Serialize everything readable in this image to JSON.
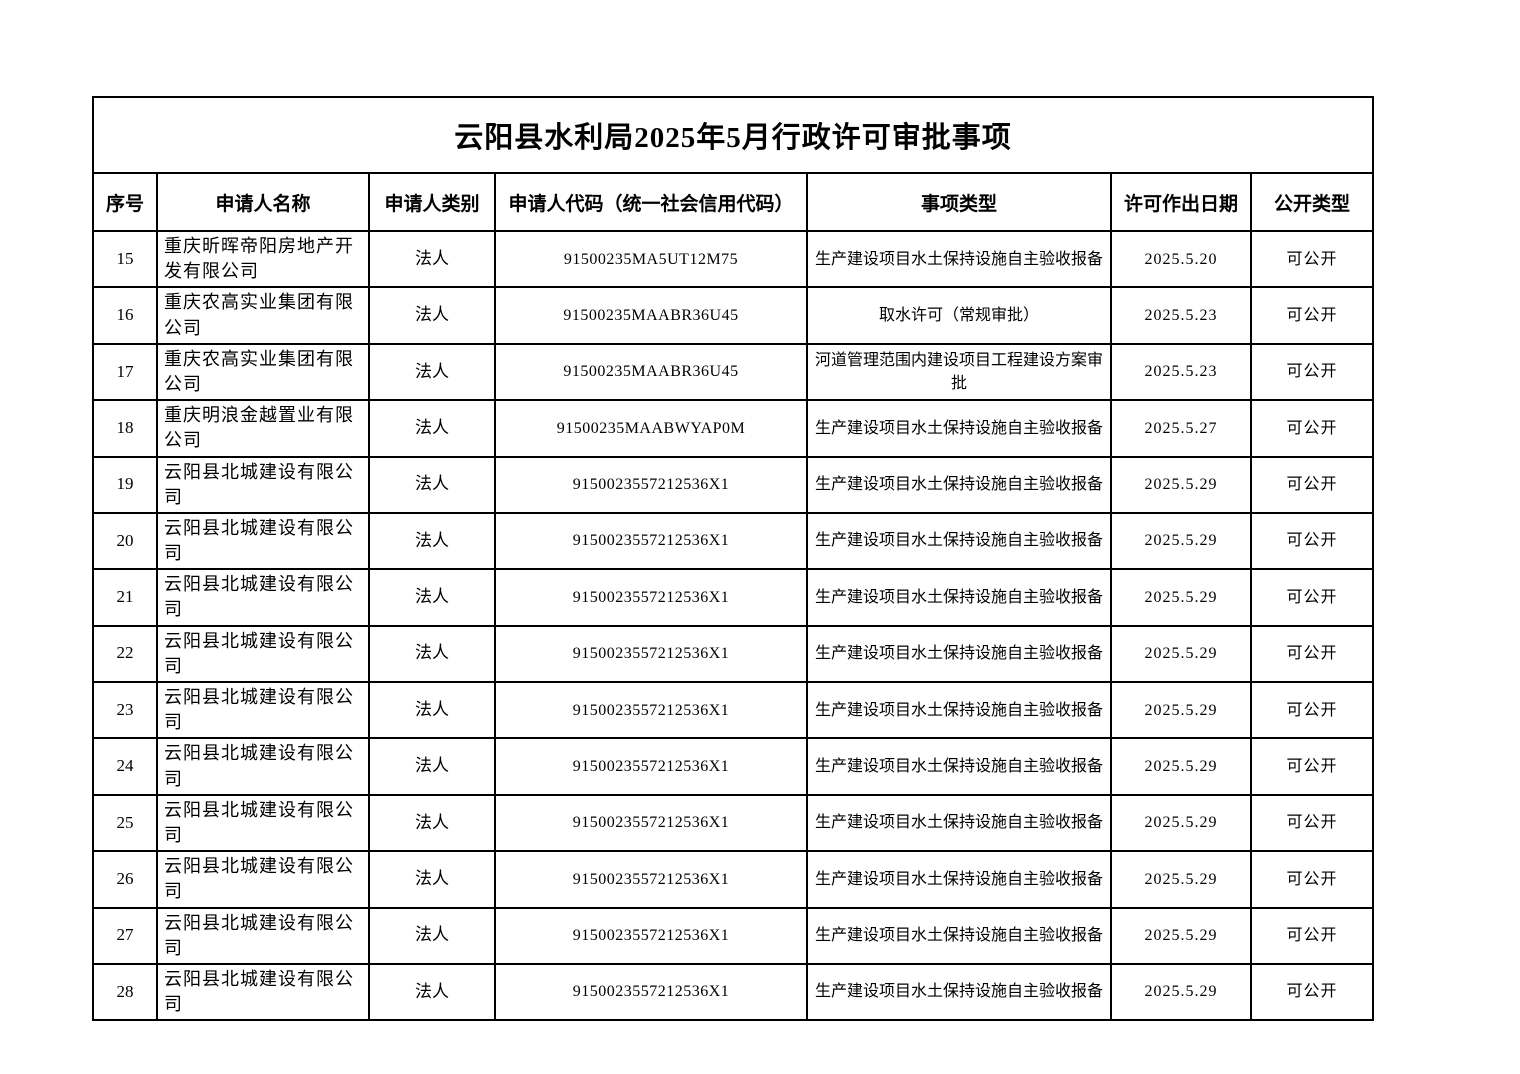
{
  "title": "云阳县水利局2025年5月行政许可审批事项",
  "table": {
    "column_keys": [
      "seq",
      "applicant-name",
      "applicant-category",
      "credit-code",
      "item-type",
      "license-date",
      "public-type"
    ],
    "columns": [
      "序号",
      "申请人名称",
      "申请人类别",
      "申请人代码（统一社会信用代码）",
      "事项类型",
      "许可作出日期",
      "公开类型"
    ],
    "rows": [
      [
        "15",
        "重庆昕晖帝阳房地产开发有限公司",
        "法人",
        "91500235MA5UT12M75",
        "生产建设项目水土保持设施自主验收报备",
        "2025.5.20",
        "可公开"
      ],
      [
        "16",
        "重庆农高实业集团有限公司",
        "法人",
        "91500235MAABR36U45",
        "取水许可（常规审批）",
        "2025.5.23",
        "可公开"
      ],
      [
        "17",
        "重庆农高实业集团有限公司",
        "法人",
        "91500235MAABR36U45",
        "河道管理范围内建设项目工程建设方案审批",
        "2025.5.23",
        "可公开"
      ],
      [
        "18",
        "重庆明浪金越置业有限公司",
        "法人",
        "91500235MAABWYAP0M",
        "生产建设项目水土保持设施自主验收报备",
        "2025.5.27",
        "可公开"
      ],
      [
        "19",
        "云阳县北城建设有限公司",
        "法人",
        "9150023557212536X1",
        "生产建设项目水土保持设施自主验收报备",
        "2025.5.29",
        "可公开"
      ],
      [
        "20",
        "云阳县北城建设有限公司",
        "法人",
        "9150023557212536X1",
        "生产建设项目水土保持设施自主验收报备",
        "2025.5.29",
        "可公开"
      ],
      [
        "21",
        "云阳县北城建设有限公司",
        "法人",
        "9150023557212536X1",
        "生产建设项目水土保持设施自主验收报备",
        "2025.5.29",
        "可公开"
      ],
      [
        "22",
        "云阳县北城建设有限公司",
        "法人",
        "9150023557212536X1",
        "生产建设项目水土保持设施自主验收报备",
        "2025.5.29",
        "可公开"
      ],
      [
        "23",
        "云阳县北城建设有限公司",
        "法人",
        "9150023557212536X1",
        "生产建设项目水土保持设施自主验收报备",
        "2025.5.29",
        "可公开"
      ],
      [
        "24",
        "云阳县北城建设有限公司",
        "法人",
        "9150023557212536X1",
        "生产建设项目水土保持设施自主验收报备",
        "2025.5.29",
        "可公开"
      ],
      [
        "25",
        "云阳县北城建设有限公司",
        "法人",
        "9150023557212536X1",
        "生产建设项目水土保持设施自主验收报备",
        "2025.5.29",
        "可公开"
      ],
      [
        "26",
        "云阳县北城建设有限公司",
        "法人",
        "9150023557212536X1",
        "生产建设项目水土保持设施自主验收报备",
        "2025.5.29",
        "可公开"
      ],
      [
        "27",
        "云阳县北城建设有限公司",
        "法人",
        "9150023557212536X1",
        "生产建设项目水土保持设施自主验收报备",
        "2025.5.29",
        "可公开"
      ],
      [
        "28",
        "云阳县北城建设有限公司",
        "法人",
        "9150023557212536X1",
        "生产建设项目水土保持设施自主验收报备",
        "2025.5.29",
        "可公开"
      ]
    ]
  }
}
